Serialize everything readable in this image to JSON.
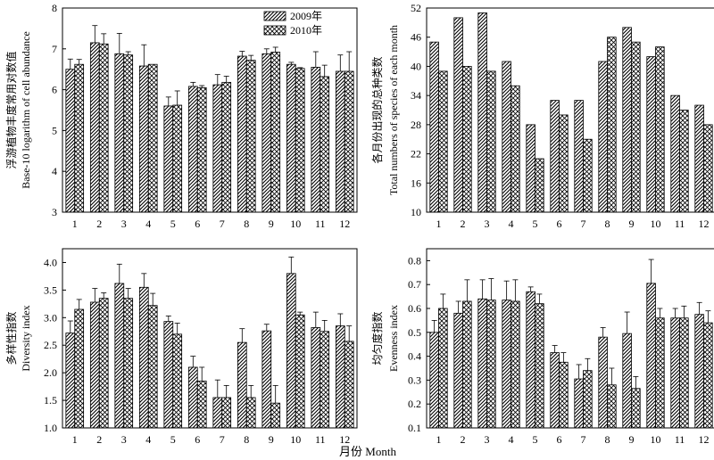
{
  "figure": {
    "xlabel": "月份 Month",
    "legend": [
      "2009年",
      "2010年"
    ]
  },
  "chart_data": [
    {
      "type": "bar",
      "categories": [
        "1",
        "2",
        "3",
        "4",
        "5",
        "6",
        "7",
        "8",
        "9",
        "10",
        "11",
        "12"
      ],
      "ylabel_cn": "浮游植物丰度常用对数值",
      "ylabel_en": "Base-10 logarithm of cell abundance",
      "ylim": [
        3,
        8
      ],
      "yticks": [
        3,
        4,
        5,
        6,
        7,
        8
      ],
      "ytick_labels": [
        "3",
        "4",
        "5",
        "6",
        "7",
        "8"
      ],
      "error_bars": true,
      "series": [
        {
          "name": "2009年",
          "values": [
            6.5,
            7.15,
            6.88,
            6.58,
            5.6,
            6.08,
            6.12,
            6.82,
            6.88,
            6.62,
            6.55,
            6.45
          ],
          "errors": [
            0.25,
            0.42,
            0.5,
            0.52,
            0.22,
            0.1,
            0.25,
            0.12,
            0.12,
            0.05,
            0.38,
            0.4
          ]
        },
        {
          "name": "2010年",
          "values": [
            6.62,
            7.12,
            6.85,
            6.62,
            5.62,
            6.05,
            6.18,
            6.72,
            6.92,
            6.52,
            6.32,
            6.45
          ],
          "errors": [
            0.12,
            0.25,
            0.08,
            0.0,
            0.35,
            0.05,
            0.15,
            0.12,
            0.12,
            0.02,
            0.28,
            0.48
          ]
        }
      ]
    },
    {
      "type": "bar",
      "categories": [
        "1",
        "2",
        "3",
        "4",
        "5",
        "6",
        "7",
        "8",
        "9",
        "10",
        "11",
        "12"
      ],
      "ylabel_cn": "各月份出现的总种类数",
      "ylabel_en": "Total numbers of species of each month",
      "ylim": [
        10,
        52
      ],
      "yticks": [
        10,
        16,
        22,
        28,
        34,
        40,
        46,
        52
      ],
      "ytick_labels": [
        "10",
        "16",
        "22",
        "28",
        "34",
        "40",
        "46",
        "52"
      ],
      "error_bars": false,
      "series": [
        {
          "name": "2009年",
          "values": [
            45,
            50,
            51,
            41,
            28,
            33,
            33,
            41,
            48,
            42,
            34,
            32
          ]
        },
        {
          "name": "2010年",
          "values": [
            39,
            40,
            39,
            36,
            21,
            30,
            25,
            46,
            45,
            44,
            31,
            28
          ]
        }
      ]
    },
    {
      "type": "bar",
      "categories": [
        "1",
        "2",
        "3",
        "4",
        "5",
        "6",
        "7",
        "8",
        "9",
        "10",
        "11",
        "12"
      ],
      "ylabel_cn": "多样性指数",
      "ylabel_en": "Diversity index",
      "ylim": [
        1.0,
        4.25
      ],
      "yticks": [
        1.0,
        1.5,
        2.0,
        2.5,
        3.0,
        3.5,
        4.0
      ],
      "ytick_labels": [
        "1.0",
        "1.5",
        "2.0",
        "2.5",
        "3.0",
        "3.5",
        "4.0"
      ],
      "error_bars": true,
      "series": [
        {
          "name": "2009年",
          "values": [
            2.72,
            3.28,
            3.62,
            3.55,
            2.93,
            2.1,
            1.55,
            2.55,
            2.76,
            3.8,
            2.82,
            2.85
          ],
          "errors": [
            0.22,
            0.25,
            0.35,
            0.25,
            0.1,
            0.2,
            0.32,
            0.25,
            0.12,
            0.3,
            0.28,
            0.22
          ]
        },
        {
          "name": "2010年",
          "values": [
            3.15,
            3.35,
            3.35,
            3.22,
            2.7,
            1.85,
            1.55,
            1.55,
            1.45,
            3.05,
            2.75,
            2.57
          ],
          "errors": [
            0.18,
            0.1,
            0.18,
            0.22,
            0.2,
            0.25,
            0.22,
            0.22,
            0.32,
            0.05,
            0.2,
            0.28
          ]
        }
      ]
    },
    {
      "type": "bar",
      "categories": [
        "1",
        "2",
        "3",
        "4",
        "5",
        "6",
        "7",
        "8",
        "9",
        "10",
        "11",
        "12"
      ],
      "ylabel_cn": "均匀度指数",
      "ylabel_en": "Evenness index",
      "ylim": [
        0.1,
        0.85
      ],
      "yticks": [
        0.1,
        0.2,
        0.3,
        0.4,
        0.5,
        0.6,
        0.7,
        0.8
      ],
      "ytick_labels": [
        "0.1",
        "0.2",
        "0.3",
        "0.4",
        "0.5",
        "0.6",
        "0.7",
        "0.8"
      ],
      "error_bars": true,
      "series": [
        {
          "name": "2009年",
          "values": [
            0.5,
            0.58,
            0.64,
            0.635,
            0.67,
            0.415,
            0.305,
            0.48,
            0.495,
            0.705,
            0.56,
            0.575
          ],
          "errors": [
            0.05,
            0.05,
            0.08,
            0.08,
            0.02,
            0.03,
            0.06,
            0.04,
            0.09,
            0.1,
            0.04,
            0.05
          ]
        },
        {
          "name": "2010年",
          "values": [
            0.6,
            0.63,
            0.635,
            0.63,
            0.62,
            0.375,
            0.34,
            0.28,
            0.265,
            0.56,
            0.56,
            0.54
          ],
          "errors": [
            0.06,
            0.09,
            0.09,
            0.09,
            0.04,
            0.04,
            0.05,
            0.07,
            0.05,
            0.04,
            0.05,
            0.05
          ]
        }
      ]
    }
  ]
}
